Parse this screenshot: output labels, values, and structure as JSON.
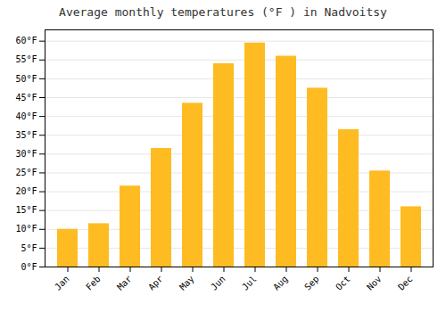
{
  "chart_data": {
    "type": "bar",
    "title": "Average monthly temperatures (°F ) in Nadvoitsy",
    "categories": [
      "Jan",
      "Feb",
      "Mar",
      "Apr",
      "May",
      "Jun",
      "Jul",
      "Aug",
      "Sep",
      "Oct",
      "Nov",
      "Dec"
    ],
    "values": [
      10,
      11.5,
      21.5,
      31.5,
      43.5,
      54,
      59.5,
      56,
      47.5,
      36.5,
      25.5,
      16
    ],
    "color": "#FFBB22",
    "ylim": [
      0,
      63
    ],
    "yticks": [
      {
        "value": 0,
        "label": "0°F"
      },
      {
        "value": 5,
        "label": "5°F"
      },
      {
        "value": 10,
        "label": "10°F"
      },
      {
        "value": 15,
        "label": "15°F"
      },
      {
        "value": 20,
        "label": "20°F"
      },
      {
        "value": 25,
        "label": "25°F"
      },
      {
        "value": 30,
        "label": "30°F"
      },
      {
        "value": 35,
        "label": "35°F"
      },
      {
        "value": 40,
        "label": "40°F"
      },
      {
        "value": 45,
        "label": "45°F"
      },
      {
        "value": 50,
        "label": "50°F"
      },
      {
        "value": 55,
        "label": "55°F"
      },
      {
        "value": 60,
        "label": "60°F"
      }
    ],
    "grid": true
  }
}
